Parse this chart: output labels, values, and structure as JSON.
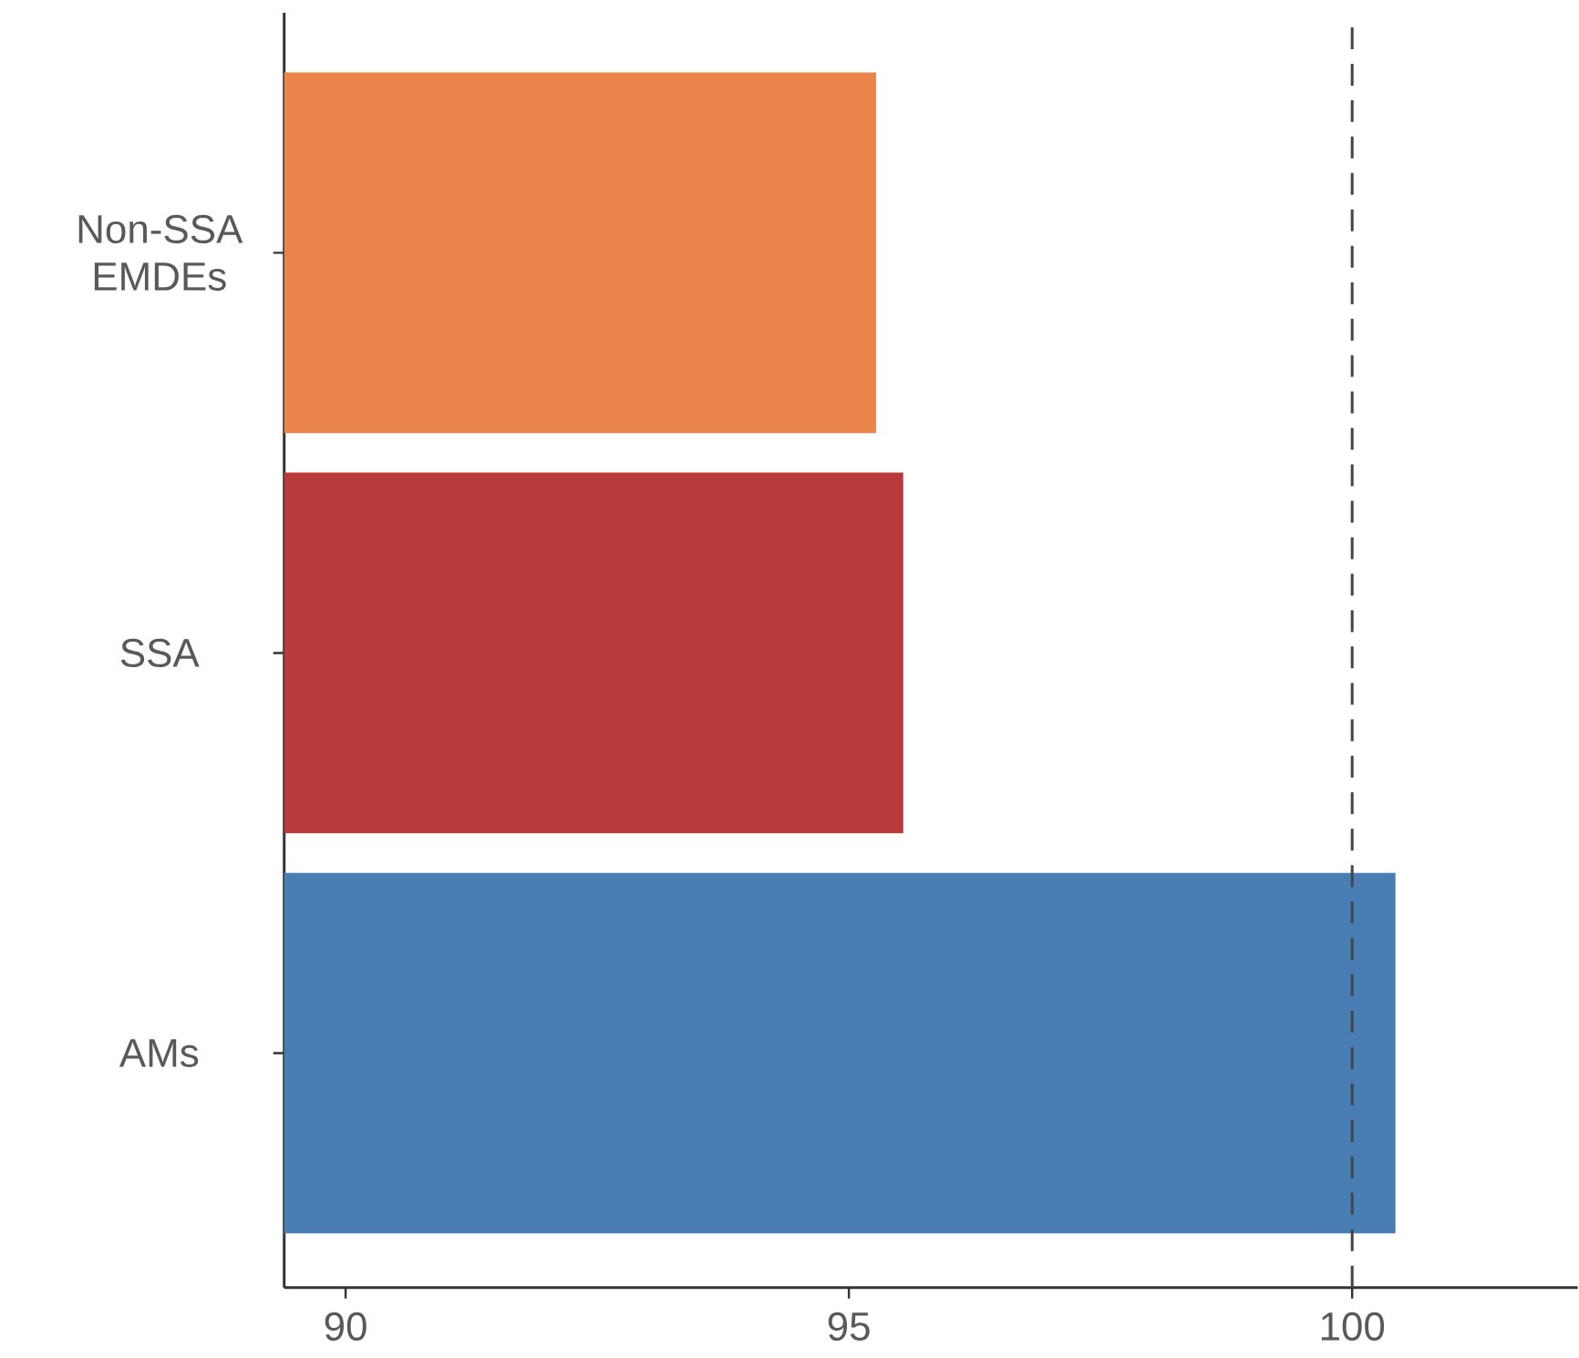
{
  "chart_data": {
    "type": "bar",
    "orientation": "horizontal",
    "categories": [
      "Non-SSA EMDEs",
      "SSA",
      "AMs"
    ],
    "values": [
      95.27,
      95.54,
      100.43
    ],
    "colors": [
      "#eb844b",
      "#b83a3a",
      "#487eb3"
    ],
    "xlim": [
      89.39,
      102.24
    ],
    "xticks": [
      90,
      95,
      100
    ],
    "ref_lines": [
      {
        "axis": "x",
        "value": 100,
        "color": "#444444",
        "line_style": "dashed"
      }
    ]
  }
}
